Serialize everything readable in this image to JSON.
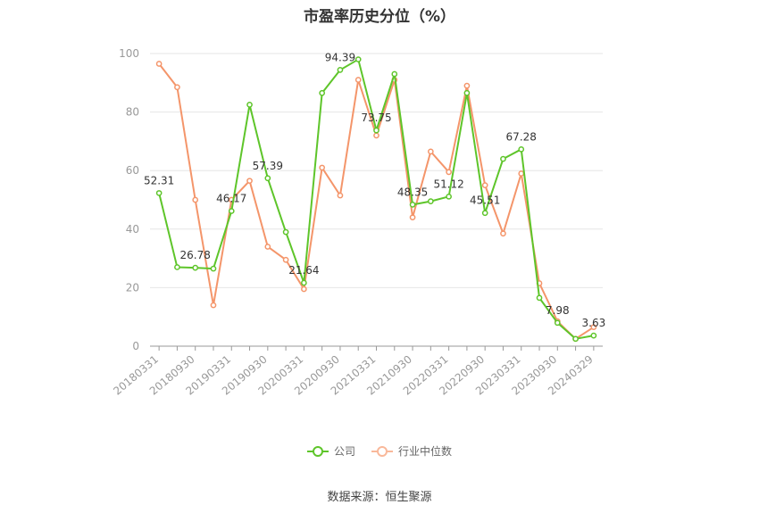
{
  "chart_data": {
    "type": "line",
    "title": "市盈率历史分位（%）",
    "categories": [
      "20180331",
      "20180630",
      "20180930",
      "20181231",
      "20190331",
      "20190630",
      "20190930",
      "20191231",
      "20200331",
      "20200630",
      "20200930",
      "20201231",
      "20210331",
      "20210630",
      "20210930",
      "20211231",
      "20220331",
      "20220630",
      "20220930",
      "20221231",
      "20230331",
      "20230630",
      "20230930",
      "20231231",
      "20240329"
    ],
    "xtick_labels": [
      "20180331",
      "20180930",
      "20190331",
      "20190930",
      "20200331",
      "20200930",
      "20210331",
      "20210930",
      "20220331",
      "20220930",
      "20230331",
      "20230930",
      "20240329"
    ],
    "ylim": [
      0,
      100
    ],
    "yticks": [
      0,
      20,
      40,
      60,
      80,
      100
    ],
    "grid": true,
    "legend_position": "bottom",
    "series": [
      {
        "name": "公司",
        "color": "#5ec52a",
        "values": [
          52.31,
          27.0,
          26.78,
          26.5,
          46.17,
          82.5,
          57.39,
          39.0,
          21.64,
          86.5,
          94.39,
          98.0,
          73.75,
          93.0,
          48.35,
          49.5,
          51.12,
          86.5,
          45.51,
          64.0,
          67.28,
          16.5,
          7.98,
          2.5,
          3.63
        ],
        "labels": {
          "0": "52.31",
          "2": "26.78",
          "4": "46.17",
          "6": "57.39",
          "8": "21.64",
          "10": "94.39",
          "12": "73.75",
          "14": "48.35",
          "16": "51.12",
          "18": "45.51",
          "20": "67.28",
          "22": "7.98",
          "24": "3.63"
        }
      },
      {
        "name": "行业中位数",
        "color": "#f4956a",
        "values": [
          96.5,
          88.5,
          50.0,
          14.0,
          50.0,
          56.5,
          34.0,
          29.5,
          19.5,
          61.0,
          51.5,
          91.0,
          72.0,
          91.0,
          44.0,
          66.5,
          59.5,
          89.0,
          55.0,
          38.5,
          59.0,
          21.5,
          8.5,
          2.5,
          6.5
        ]
      }
    ]
  },
  "legend": {
    "company": "公司",
    "industry": "行业中位数"
  },
  "footer": {
    "source": "数据来源：恒生聚源"
  }
}
